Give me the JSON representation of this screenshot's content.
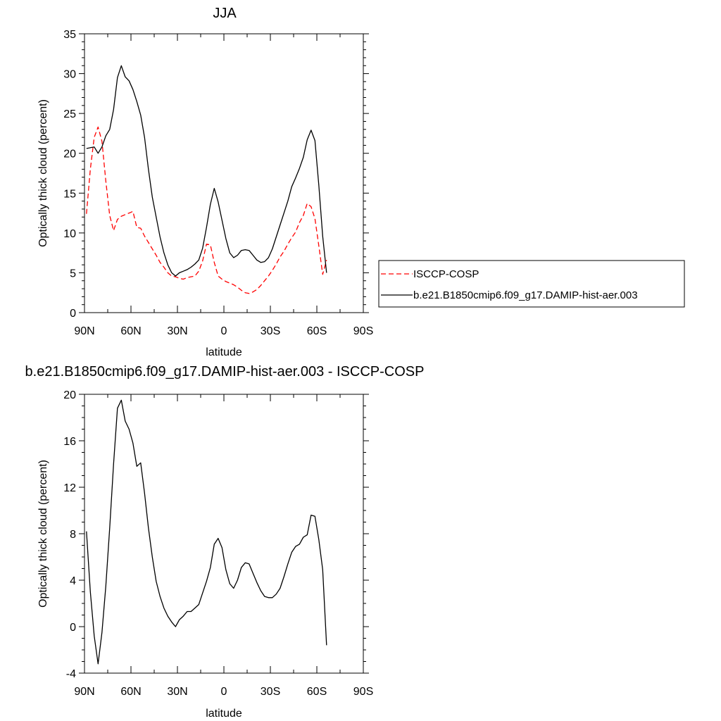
{
  "chart_data": [
    {
      "type": "line",
      "title": "JJA",
      "xlabel": "latitude",
      "ylabel": "Optically thick cloud (percent)",
      "xlim": [
        90,
        -90
      ],
      "ylim": [
        0,
        35
      ],
      "x_ticks": [
        90,
        60,
        30,
        0,
        -30,
        -60,
        -90
      ],
      "x_tick_labels": [
        "90N",
        "60N",
        "30N",
        "0",
        "30S",
        "60S",
        "90S"
      ],
      "y_ticks": [
        0,
        5,
        10,
        15,
        20,
        25,
        30,
        35
      ],
      "y_tick_labels": [
        "0",
        "5",
        "10",
        "15",
        "20",
        "25",
        "30",
        "35"
      ],
      "legend_position": "right",
      "series": [
        {
          "name": "ISCCP-COSP",
          "color": "#ff0000",
          "dash": "dashed",
          "x": [
            88.75,
            86.25,
            83.75,
            81.25,
            78.75,
            76.25,
            73.75,
            71.25,
            68.75,
            66.25,
            63.75,
            61.25,
            58.75,
            56.25,
            53.75,
            51.25,
            48.75,
            46.25,
            43.75,
            41.25,
            38.75,
            36.25,
            33.75,
            31.25,
            28.75,
            26.25,
            23.75,
            21.25,
            18.75,
            16.25,
            13.75,
            11.25,
            8.75,
            6.25,
            3.75,
            1.25,
            -1.25,
            -3.75,
            -6.25,
            -8.75,
            -11.25,
            -13.75,
            -16.25,
            -18.75,
            -21.25,
            -23.75,
            -26.25,
            -28.75,
            -31.25,
            -33.75,
            -36.25,
            -38.75,
            -41.25,
            -43.75,
            -46.25,
            -48.75,
            -51.25,
            -53.75,
            -56.25,
            -58.75,
            -61.25,
            -63.75,
            -66.25
          ],
          "y": [
            12.4,
            18.0,
            22.0,
            23.3,
            21.5,
            16.5,
            12.2,
            10.3,
            11.7,
            12.1,
            12.3,
            12.5,
            12.7,
            10.7,
            10.6,
            9.6,
            8.8,
            8.0,
            7.2,
            6.3,
            5.7,
            5.0,
            4.6,
            4.5,
            4.3,
            4.2,
            4.4,
            4.5,
            4.6,
            5.2,
            6.5,
            8.6,
            8.5,
            6.3,
            4.6,
            4.2,
            3.9,
            3.7,
            3.5,
            3.2,
            2.8,
            2.5,
            2.4,
            2.6,
            2.9,
            3.4,
            4.0,
            4.6,
            5.3,
            6.1,
            7.0,
            7.7,
            8.6,
            9.4,
            10.1,
            11.3,
            12.2,
            13.7,
            13.3,
            11.8,
            8.4,
            4.8,
            6.6
          ]
        },
        {
          "name": "b.e21.B1850cmip6.f09_g17.DAMIP-hist-aer.003",
          "color": "#000000",
          "dash": "solid",
          "x": [
            88.75,
            86.25,
            83.75,
            81.25,
            78.75,
            76.25,
            73.75,
            71.25,
            68.75,
            66.25,
            63.75,
            61.25,
            58.75,
            56.25,
            53.75,
            51.25,
            48.75,
            46.25,
            43.75,
            41.25,
            38.75,
            36.25,
            33.75,
            31.25,
            28.75,
            26.25,
            23.75,
            21.25,
            18.75,
            16.25,
            13.75,
            11.25,
            8.75,
            6.25,
            3.75,
            1.25,
            -1.25,
            -3.75,
            -6.25,
            -8.75,
            -11.25,
            -13.75,
            -16.25,
            -18.75,
            -21.25,
            -23.75,
            -26.25,
            -28.75,
            -31.25,
            -33.75,
            -36.25,
            -38.75,
            -41.25,
            -43.75,
            -46.25,
            -48.75,
            -51.25,
            -53.75,
            -56.25,
            -58.75,
            -61.25,
            -63.75,
            -66.25
          ],
          "y": [
            20.6,
            20.7,
            20.8,
            20.0,
            20.8,
            22.2,
            23.0,
            25.5,
            29.5,
            31.0,
            29.6,
            29.1,
            28.0,
            26.5,
            24.8,
            22.0,
            18.0,
            14.5,
            12.0,
            9.5,
            7.5,
            6.0,
            5.0,
            4.6,
            5.0,
            5.2,
            5.4,
            5.7,
            6.1,
            6.6,
            8.1,
            10.7,
            13.6,
            15.6,
            13.9,
            11.6,
            9.3,
            7.5,
            6.9,
            7.2,
            7.8,
            7.9,
            7.8,
            7.2,
            6.6,
            6.3,
            6.4,
            6.9,
            8.0,
            9.5,
            11.0,
            12.5,
            14.0,
            15.8,
            16.9,
            18.1,
            19.5,
            21.7,
            22.9,
            21.6,
            16.0,
            9.6,
            5.0
          ]
        }
      ]
    },
    {
      "type": "line",
      "title": "b.e21.B1850cmip6.f09_g17.DAMIP-hist-aer.003 - ISCCP-COSP",
      "xlabel": "latitude",
      "ylabel": "Optically thick cloud (percent)",
      "xlim": [
        90,
        -90
      ],
      "ylim": [
        -4,
        20
      ],
      "x_ticks": [
        90,
        60,
        30,
        0,
        -30,
        -60,
        -90
      ],
      "x_tick_labels": [
        "90N",
        "60N",
        "30N",
        "0",
        "30S",
        "60S",
        "90S"
      ],
      "y_ticks": [
        -4,
        0,
        4,
        8,
        12,
        16,
        20
      ],
      "y_tick_labels": [
        "-4",
        "0",
        "4",
        "8",
        "12",
        "16",
        "20"
      ],
      "series": [
        {
          "color": "#000000",
          "dash": "solid",
          "x": [
            88.75,
            86.25,
            83.75,
            81.25,
            78.75,
            76.25,
            73.75,
            71.25,
            68.75,
            66.25,
            63.75,
            61.25,
            58.75,
            56.25,
            53.75,
            51.25,
            48.75,
            46.25,
            43.75,
            41.25,
            38.75,
            36.25,
            33.75,
            31.25,
            28.75,
            26.25,
            23.75,
            21.25,
            18.75,
            16.25,
            13.75,
            11.25,
            8.75,
            6.25,
            3.75,
            1.25,
            -1.25,
            -3.75,
            -6.25,
            -8.75,
            -11.25,
            -13.75,
            -16.25,
            -18.75,
            -21.25,
            -23.75,
            -26.25,
            -28.75,
            -31.25,
            -33.75,
            -36.25,
            -38.75,
            -41.25,
            -43.75,
            -46.25,
            -48.75,
            -51.25,
            -53.75,
            -56.25,
            -58.75,
            -61.25,
            -63.75,
            -66.25
          ],
          "y": [
            8.2,
            3.0,
            -0.8,
            -3.2,
            -0.5,
            3.5,
            8.5,
            14.0,
            18.8,
            19.5,
            17.7,
            17.0,
            15.8,
            13.8,
            14.1,
            11.5,
            8.5,
            6.0,
            3.9,
            2.6,
            1.6,
            0.9,
            0.4,
            0.0,
            0.6,
            0.9,
            1.3,
            1.3,
            1.6,
            1.9,
            2.9,
            3.9,
            5.1,
            7.1,
            7.6,
            6.8,
            4.9,
            3.7,
            3.3,
            4.0,
            5.1,
            5.5,
            5.4,
            4.6,
            3.8,
            3.1,
            2.6,
            2.5,
            2.5,
            2.8,
            3.3,
            4.3,
            5.4,
            6.4,
            6.9,
            7.1,
            7.7,
            7.9,
            9.6,
            9.5,
            7.5,
            4.9,
            -1.6
          ]
        }
      ]
    }
  ]
}
